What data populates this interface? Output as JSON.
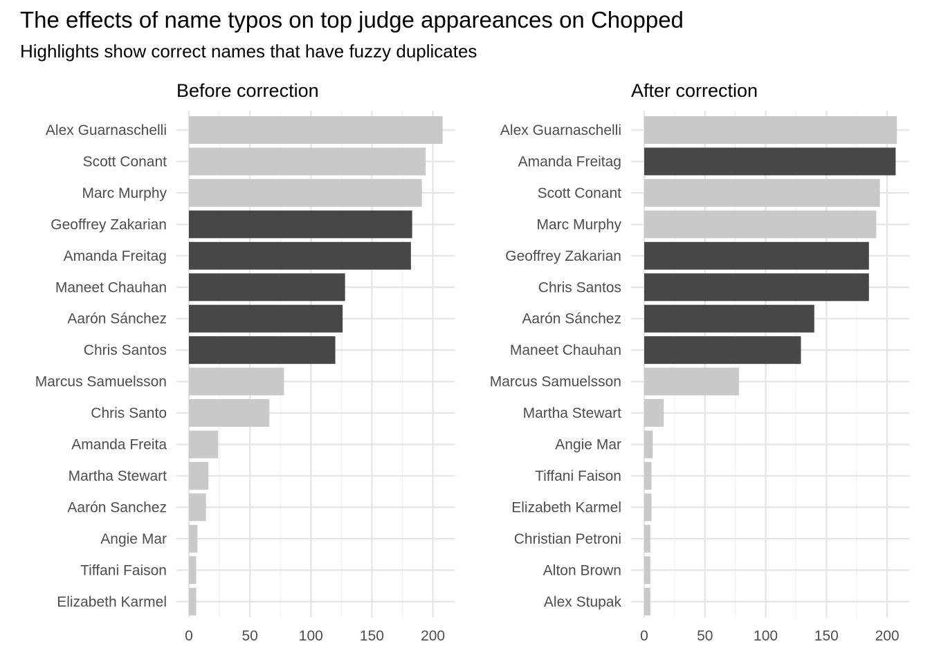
{
  "title": "The effects of name typos on top judge appareances on Chopped",
  "subtitle": "Highlights show correct names that have fuzzy duplicates",
  "colors": {
    "highlight": "#474747",
    "normal": "#c9c9c9",
    "grid_major": "#e5e5e5",
    "grid_minor": "#f2f2f2",
    "axis_text": "#4d4d4d"
  },
  "chart_data": [
    {
      "type": "bar",
      "orientation": "horizontal",
      "title": "Before correction",
      "xlim": [
        0,
        220
      ],
      "xticks": [
        0,
        50,
        100,
        150,
        200
      ],
      "grid": true,
      "categories": [
        "Alex Guarnaschelli",
        "Scott Conant",
        "Marc Murphy",
        "Geoffrey Zakarian",
        "Amanda Freitag",
        "Maneet Chauhan",
        "Aarón Sánchez",
        "Chris Santos",
        "Marcus Samuelsson",
        "Chris Santo",
        "Amanda Freita",
        "Martha Stewart",
        "Aarón Sanchez",
        "Angie Mar",
        "Tiffani Faison",
        "Elizabeth Karmel"
      ],
      "values": [
        208,
        194,
        191,
        183,
        182,
        128,
        126,
        120,
        78,
        66,
        24,
        16,
        14,
        7,
        6,
        6
      ],
      "highlighted": [
        false,
        false,
        false,
        true,
        true,
        true,
        true,
        true,
        false,
        false,
        false,
        false,
        false,
        false,
        false,
        false
      ]
    },
    {
      "type": "bar",
      "orientation": "horizontal",
      "title": "After correction",
      "xlim": [
        0,
        220
      ],
      "xticks": [
        0,
        50,
        100,
        150,
        200
      ],
      "grid": true,
      "categories": [
        "Alex Guarnaschelli",
        "Amanda Freitag",
        "Scott Conant",
        "Marc Murphy",
        "Geoffrey Zakarian",
        "Chris Santos",
        "Aarón Sánchez",
        "Maneet Chauhan",
        "Marcus Samuelsson",
        "Martha Stewart",
        "Angie Mar",
        "Tiffani Faison",
        "Elizabeth Karmel",
        "Christian Petroni",
        "Alton Brown",
        "Alex Stupak"
      ],
      "values": [
        208,
        207,
        194,
        191,
        185,
        185,
        140,
        129,
        78,
        16,
        7,
        6,
        6,
        5,
        5,
        5
      ],
      "highlighted": [
        false,
        true,
        false,
        false,
        true,
        true,
        true,
        true,
        false,
        false,
        false,
        false,
        false,
        false,
        false,
        false
      ]
    }
  ]
}
